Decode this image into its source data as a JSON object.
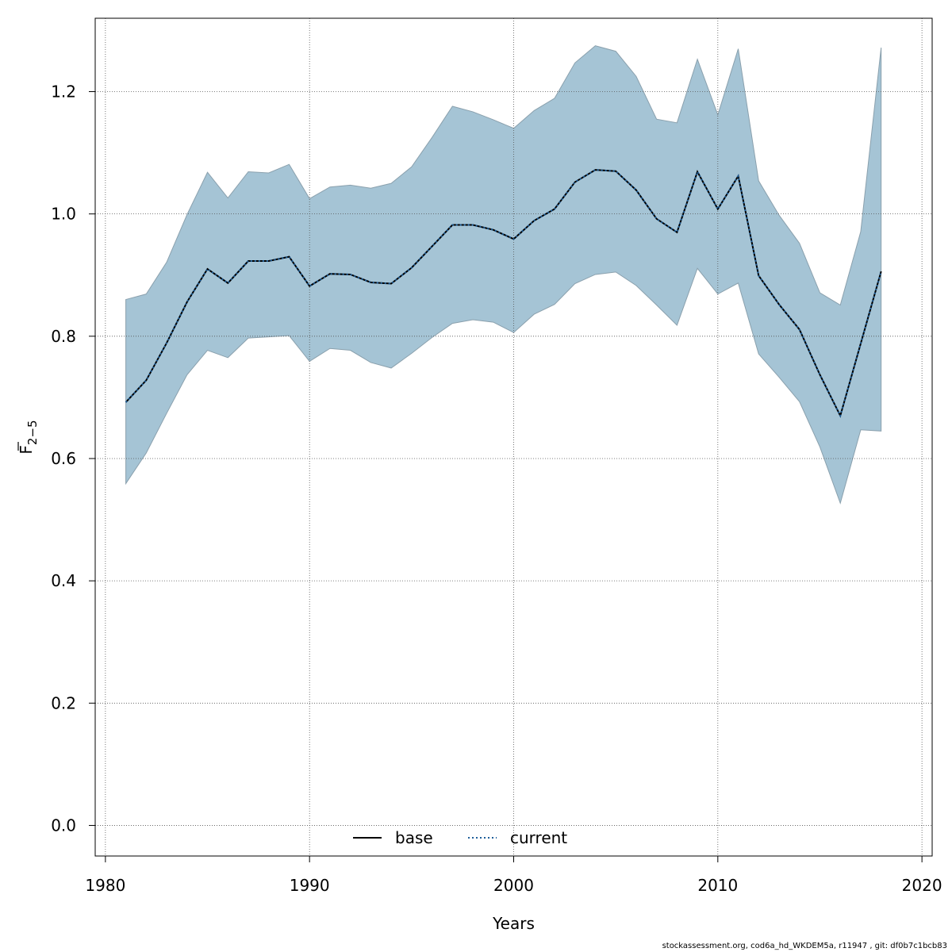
{
  "chart_data": {
    "type": "line",
    "xlabel": "Years",
    "ylabel": {
      "main": "F",
      "sub": "2−5"
    },
    "xlim": [
      1979.5,
      2020.5
    ],
    "ylim": [
      -0.05,
      1.32
    ],
    "xticks": [
      1980,
      1990,
      2000,
      2010,
      2020
    ],
    "yticks": [
      0.0,
      0.2,
      0.4,
      0.6,
      0.8,
      1.0,
      1.2
    ],
    "xtick_labels": [
      "1980",
      "1990",
      "2000",
      "2010",
      "2020"
    ],
    "ytick_labels": [
      "0.0",
      "0.2",
      "0.4",
      "0.6",
      "0.8",
      "1.0",
      "1.2"
    ],
    "grid": true,
    "legend_position": "bottom-center",
    "x": [
      1981,
      1982,
      1983,
      1984,
      1985,
      1986,
      1987,
      1988,
      1989,
      1990,
      1991,
      1992,
      1993,
      1994,
      1995,
      1996,
      1997,
      1998,
      1999,
      2000,
      2001,
      2002,
      2003,
      2004,
      2005,
      2006,
      2007,
      2008,
      2009,
      2010,
      2011,
      2012,
      2013,
      2014,
      2015,
      2016,
      2017,
      2018
    ],
    "series": [
      {
        "name": "base",
        "line_style": "solid",
        "color": "#000000",
        "values": [
          0.692,
          0.728,
          0.789,
          0.856,
          0.91,
          0.887,
          0.923,
          0.923,
          0.93,
          0.882,
          0.902,
          0.901,
          0.888,
          0.886,
          0.912,
          0.947,
          0.982,
          0.982,
          0.974,
          0.959,
          0.989,
          1.008,
          1.052,
          1.072,
          1.07,
          1.039,
          0.992,
          0.97,
          1.069,
          1.008,
          1.062,
          0.899,
          0.852,
          0.811,
          0.737,
          0.67,
          0.788,
          0.906
        ]
      },
      {
        "name": "current",
        "line_style": "dotted",
        "color": "#1f5f9a",
        "values": [
          0.692,
          0.728,
          0.789,
          0.856,
          0.91,
          0.887,
          0.923,
          0.923,
          0.93,
          0.882,
          0.902,
          0.901,
          0.888,
          0.886,
          0.912,
          0.947,
          0.982,
          0.982,
          0.974,
          0.959,
          0.989,
          1.008,
          1.052,
          1.072,
          1.07,
          1.039,
          0.992,
          0.97,
          1.069,
          1.008,
          1.062,
          0.899,
          0.852,
          0.811,
          0.737,
          0.67,
          0.788,
          0.906
        ]
      }
    ],
    "confidence_band": {
      "color": "#a5c4d5",
      "lower": [
        0.559,
        0.609,
        0.674,
        0.737,
        0.777,
        0.765,
        0.797,
        0.799,
        0.801,
        0.759,
        0.78,
        0.777,
        0.757,
        0.748,
        0.772,
        0.798,
        0.821,
        0.827,
        0.823,
        0.806,
        0.836,
        0.852,
        0.886,
        0.901,
        0.905,
        0.883,
        0.851,
        0.818,
        0.911,
        0.869,
        0.887,
        0.771,
        0.733,
        0.693,
        0.619,
        0.527,
        0.647,
        0.645
      ],
      "upper": [
        0.86,
        0.869,
        0.921,
        0.999,
        1.068,
        1.026,
        1.069,
        1.067,
        1.081,
        1.025,
        1.044,
        1.047,
        1.042,
        1.05,
        1.077,
        1.125,
        1.176,
        1.167,
        1.154,
        1.14,
        1.169,
        1.189,
        1.247,
        1.275,
        1.266,
        1.225,
        1.155,
        1.149,
        1.253,
        1.162,
        1.27,
        1.054,
        0.998,
        0.952,
        0.871,
        0.851,
        0.971,
        1.272
      ]
    }
  },
  "footer_text": "stockassessment.org, cod6a_hd_WKDEM5a, r11947 , git: df0b7c1bcb83"
}
